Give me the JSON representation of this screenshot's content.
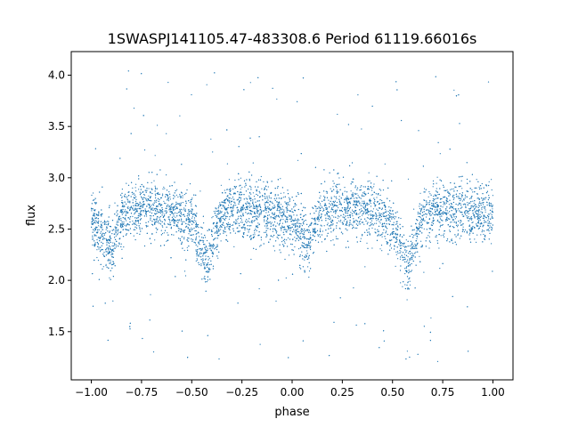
{
  "chart_data": {
    "type": "scatter",
    "title": "1SWASPJ141105.47-483308.6 Period 61119.66016s",
    "xlabel": "phase",
    "ylabel": "flux",
    "xlim": [
      -1.1,
      1.1
    ],
    "ylim": [
      1.03,
      4.23
    ],
    "x_ticks": [
      -1.0,
      -0.75,
      -0.5,
      -0.25,
      0.0,
      0.25,
      0.5,
      0.75,
      1.0
    ],
    "x_tick_labels": [
      "−1.00",
      "−0.75",
      "−0.50",
      "−0.25",
      "0.00",
      "0.25",
      "0.50",
      "0.75",
      "1.00"
    ],
    "y_ticks": [
      1.5,
      2.0,
      2.5,
      3.0,
      3.5,
      4.0
    ],
    "y_tick_labels": [
      "1.5",
      "2.0",
      "2.5",
      "3.0",
      "3.5",
      "4.0"
    ],
    "grid": false,
    "legend": "none",
    "marker_color": "#1f77b4",
    "series": [
      {
        "x": [
          -1.0,
          -0.95,
          -0.9,
          -0.85,
          -0.8,
          -0.75,
          -0.7,
          -0.65,
          -0.6,
          -0.55,
          -0.5,
          -0.45,
          -0.42,
          -0.4,
          -0.35,
          -0.3,
          -0.25,
          -0.2,
          -0.15,
          -0.1,
          -0.05,
          0.0,
          0.05,
          0.08,
          0.1,
          0.15,
          0.2,
          0.25,
          0.3,
          0.35,
          0.4,
          0.45,
          0.5,
          0.55,
          0.58,
          0.6,
          0.65,
          0.7,
          0.75,
          0.8,
          0.85,
          0.9,
          0.95,
          1.0
        ],
        "y": [
          2.6,
          2.45,
          2.3,
          2.6,
          2.68,
          2.7,
          2.72,
          2.7,
          2.68,
          2.62,
          2.55,
          2.3,
          2.1,
          2.35,
          2.65,
          2.7,
          2.68,
          2.68,
          2.66,
          2.64,
          2.6,
          2.58,
          2.45,
          2.3,
          2.45,
          2.65,
          2.68,
          2.7,
          2.72,
          2.7,
          2.68,
          2.62,
          2.55,
          2.3,
          2.1,
          2.3,
          2.62,
          2.68,
          2.68,
          2.68,
          2.66,
          2.65,
          2.65,
          2.65
        ]
      }
    ]
  }
}
